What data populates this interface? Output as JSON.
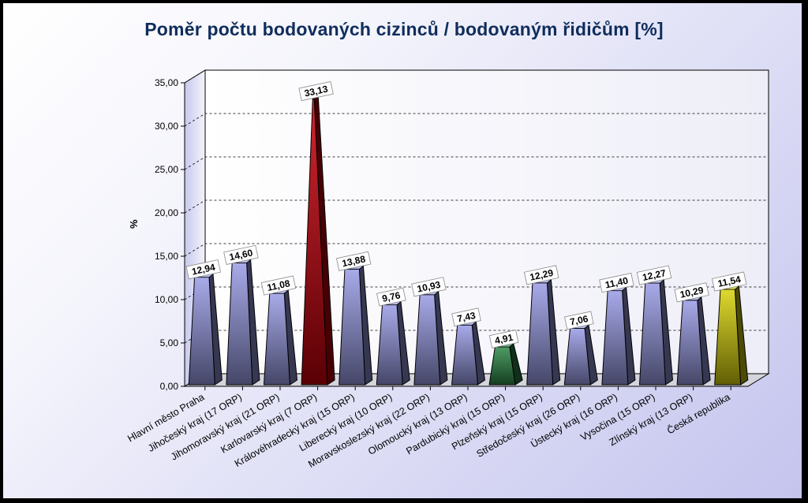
{
  "chart_data": {
    "type": "bar",
    "title": "Poměr počtu bodovaných cizinců / bodovaným řidičům [%]",
    "ylabel": "%",
    "xlabel": "",
    "ylim": [
      0,
      35
    ],
    "yticks": [
      "0,00",
      "5,00",
      "10,00",
      "15,00",
      "20,00",
      "25,00",
      "30,00",
      "35,00"
    ],
    "grid": true,
    "legend": "none",
    "categories": [
      "Hlavní město Praha",
      "Jihočeský kraj (17 ORP)",
      "Jihomoravský kraj (21 ORP)",
      "Karlovarský kraj (7 ORP)",
      "Královéhradecký kraj (15 ORP)",
      "Liberecký kraj (10 ORP)",
      "Moravskoslezský kraj (22 ORP)",
      "Olomoucký kraj (13 ORP)",
      "Pardubický kraj (15 ORP)",
      "Plzeňský kraj (15 ORP)",
      "Středočeský kraj (26 ORP)",
      "Ústecký kraj (16 ORP)",
      "Vysočina (15 ORP)",
      "Zlínský kraj (13 ORP)",
      "Česká republika"
    ],
    "values": [
      12.94,
      14.6,
      11.08,
      33.13,
      13.88,
      9.76,
      10.93,
      7.43,
      4.91,
      12.29,
      7.06,
      11.4,
      12.27,
      10.29,
      11.54
    ],
    "value_labels": [
      "12,94",
      "14,60",
      "11,08",
      "33,13",
      "13,88",
      "9,76",
      "10,93",
      "7,43",
      "4,91",
      "12,29",
      "7,06",
      "11,40",
      "12,27",
      "10,29",
      "11,54"
    ],
    "colors": {
      "default": "#9a9ce6",
      "highlight_max": "#c8000a",
      "highlight_min": "#2f8a4a",
      "total": "#d8d20a"
    },
    "bar_color_keys": [
      "default",
      "default",
      "default",
      "highlight_max",
      "default",
      "default",
      "default",
      "default",
      "highlight_min",
      "default",
      "default",
      "default",
      "default",
      "default",
      "total"
    ]
  }
}
